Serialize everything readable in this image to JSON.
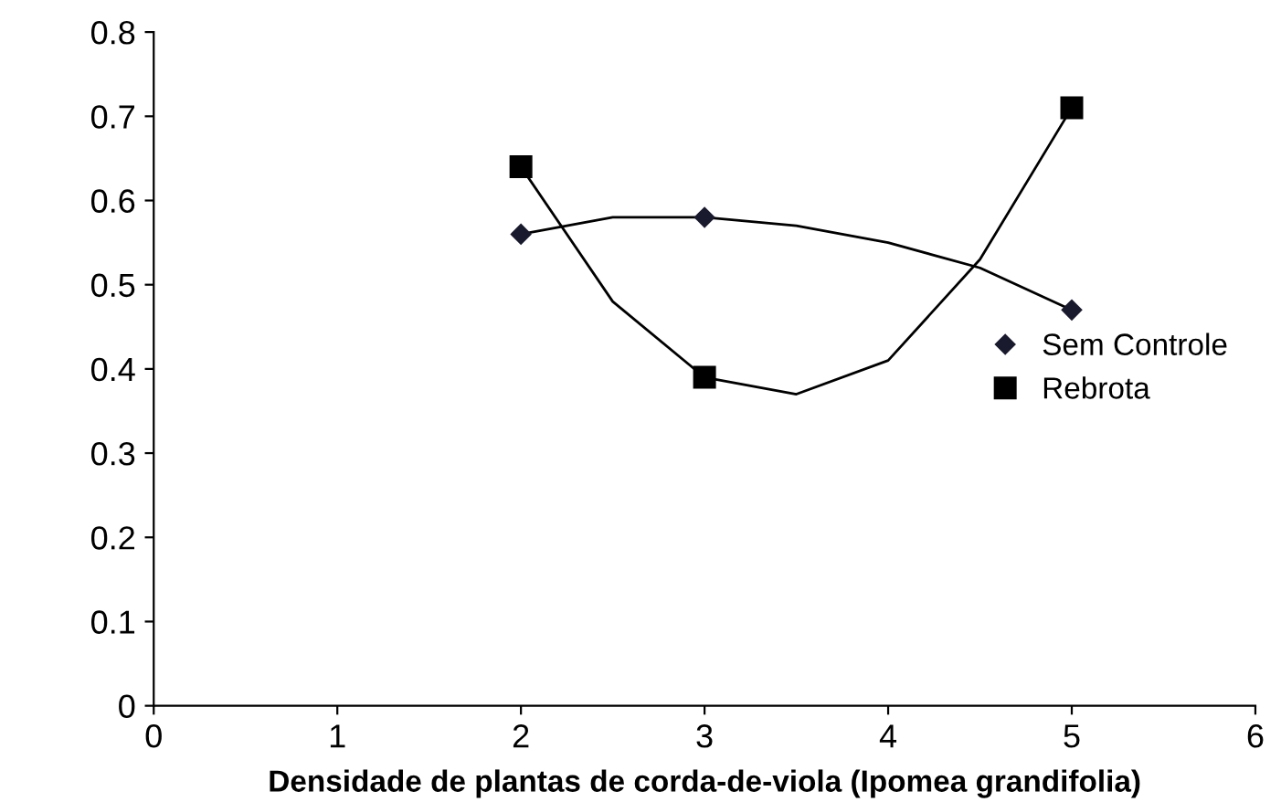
{
  "chart_data": {
    "type": "scatter",
    "xlabel": "Densidade de plantas de corda-de-viola (Ipomea grandifolia)",
    "xlim": [
      0,
      6
    ],
    "xticks": [
      0,
      1,
      2,
      3,
      4,
      5,
      6
    ],
    "ylim": [
      0,
      0.8
    ],
    "yticks": [
      0,
      0.1,
      0.2,
      0.3,
      0.4,
      0.5,
      0.6,
      0.7,
      0.8
    ],
    "legend": "right",
    "grid": false,
    "series": [
      {
        "name": "Sem Controle",
        "color": "#1a1a2e",
        "x": [
          2,
          3,
          5
        ],
        "values": [
          0.56,
          0.58,
          0.47
        ],
        "marker": "diamond"
      },
      {
        "name": "Rebrota",
        "color": "#000000",
        "x": [
          2,
          3,
          5
        ],
        "values": [
          0.64,
          0.39,
          0.71
        ],
        "marker": "square"
      },
      {
        "type": "line",
        "color": "#000000",
        "x": [
          2,
          2.5,
          3,
          3.5,
          4,
          4.5,
          5
        ],
        "values": [
          0.56,
          0.58,
          0.58,
          0.57,
          0.55,
          0.52,
          0.47
        ],
        "marker": "none"
      },
      {
        "type": "line",
        "color": "#000000",
        "x": [
          2,
          2.5,
          3,
          3.5,
          4,
          4.5,
          5
        ],
        "values": [
          0.64,
          0.48,
          0.39,
          0.37,
          0.41,
          0.53,
          0.71
        ],
        "marker": "none"
      }
    ]
  }
}
